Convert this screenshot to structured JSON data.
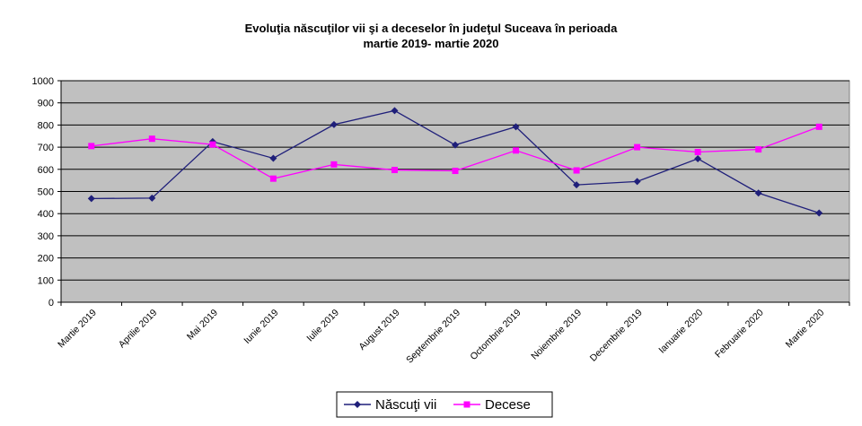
{
  "chart_data": {
    "type": "line",
    "title": "Evoluţia născuţilor vii şi a deceselor în judeţul Suceava în perioada",
    "subtitle": "martie 2019- martie 2020",
    "categories": [
      "Martie 2019",
      "Aprilie 2019",
      "Mai 2019",
      "Iunie 2019",
      "Iulie 2019",
      "August 2019",
      "Septembrie 2019",
      "Octombrie 2019",
      "Noiembrie 2019",
      "Decembrie 2019",
      "Ianuarie 2020",
      "Februarie 2020",
      "Martie 2020"
    ],
    "series": [
      {
        "name": "Născuţi vii",
        "color": "#1f1f7a",
        "marker": "diamond",
        "values": [
          468,
          470,
          725,
          650,
          802,
          865,
          710,
          792,
          530,
          545,
          648,
          493,
          403
        ]
      },
      {
        "name": "Decese",
        "color": "#ff00ff",
        "marker": "square",
        "values": [
          705,
          738,
          712,
          558,
          622,
          597,
          593,
          685,
          595,
          700,
          678,
          690,
          792
        ]
      }
    ],
    "ylim": [
      0,
      1000
    ],
    "yticks": [
      "0",
      "100",
      "200",
      "300",
      "400",
      "500",
      "600",
      "700",
      "800",
      "900",
      "1000"
    ],
    "grid": true,
    "plot_background": "#c0c0c0",
    "legend_position": "bottom-center"
  }
}
